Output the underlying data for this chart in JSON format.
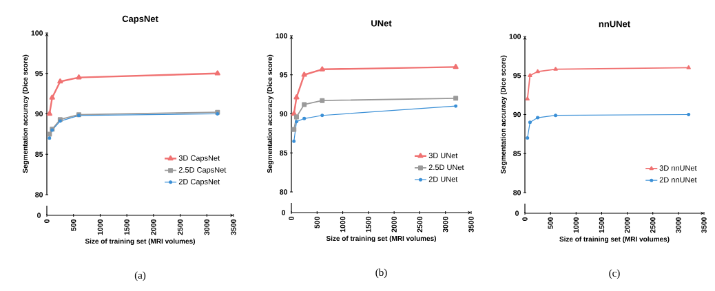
{
  "chart_data": [
    {
      "type": "line",
      "title": "CapsNet",
      "xlabel": "Size of training set (MRI volumes)",
      "ylabel": "Segmentation accuracy (Dice score)",
      "xlim": [
        0,
        3500
      ],
      "xticks": [
        0,
        500,
        1000,
        1500,
        2000,
        2500,
        3000,
        3500
      ],
      "ylim": [
        80,
        100
      ],
      "yticks": [
        80,
        85,
        90,
        95,
        100
      ],
      "legend": "bottom right",
      "x": [
        50,
        100,
        250,
        600,
        3200
      ],
      "annotations": [
        "0",
        "(a)"
      ],
      "series": [
        {
          "name": "3D CapsNet",
          "color": "#f07272",
          "marker": "triangle",
          "values": [
            90.0,
            92.0,
            94.0,
            94.5,
            95.0
          ]
        },
        {
          "name": "2.5D CapsNet",
          "color": "#9a9a9a",
          "marker": "square",
          "values": [
            87.5,
            88.1,
            89.3,
            89.9,
            90.2
          ]
        },
        {
          "name": "2D CapsNet",
          "color": "#3a8fd6",
          "marker": "circle",
          "values": [
            87.0,
            88.0,
            89.1,
            89.8,
            90.0
          ]
        }
      ]
    },
    {
      "type": "line",
      "title": "UNet",
      "xlabel": "Size of training set (MRI volumes)",
      "ylabel": "Segmentation accuracy (Dice score)",
      "xlim": [
        0,
        3500
      ],
      "xticks": [
        0,
        500,
        1000,
        1500,
        2000,
        2500,
        3000,
        3500
      ],
      "ylim": [
        80,
        100
      ],
      "yticks": [
        80,
        85,
        90,
        95,
        100
      ],
      "legend": "bottom right",
      "x": [
        50,
        100,
        250,
        600,
        3200
      ],
      "annotations": [
        "0",
        "(b)"
      ],
      "series": [
        {
          "name": "3D UNet",
          "color": "#f07272",
          "marker": "triangle",
          "values": [
            90.0,
            92.1,
            95.0,
            95.7,
            96.0
          ]
        },
        {
          "name": "2.5D UNet",
          "color": "#9a9a9a",
          "marker": "square",
          "values": [
            88.0,
            89.6,
            91.2,
            91.7,
            92.0
          ]
        },
        {
          "name": "2D UNet",
          "color": "#3a8fd6",
          "marker": "circle",
          "values": [
            86.5,
            89.0,
            89.4,
            89.8,
            91.0
          ]
        }
      ]
    },
    {
      "type": "line",
      "title": "nnUNet",
      "xlabel": "Size of training set (MRI volumes)",
      "ylabel": "Segmentation accuracy (Dice score)",
      "xlim": [
        0,
        3500
      ],
      "xticks": [
        0,
        500,
        1000,
        1500,
        2000,
        2500,
        3000,
        3500
      ],
      "ylim": [
        80,
        100
      ],
      "yticks": [
        80,
        85,
        90,
        95,
        100
      ],
      "legend": "bottom right",
      "x": [
        50,
        100,
        250,
        600,
        3200
      ],
      "annotations": [
        "0",
        "(c)"
      ],
      "series": [
        {
          "name": "3D nnUNet",
          "color": "#f07272",
          "marker": "triangle",
          "values": [
            92.0,
            95.0,
            95.5,
            95.8,
            96.0
          ]
        },
        {
          "name": "2D nnUNet",
          "color": "#3a8fd6",
          "marker": "circle",
          "values": [
            87.0,
            89.0,
            89.6,
            89.9,
            90.0
          ]
        }
      ]
    }
  ]
}
